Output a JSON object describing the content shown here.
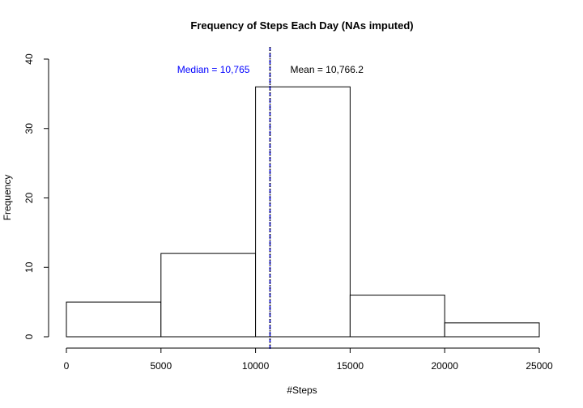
{
  "chart_data": {
    "type": "bar",
    "title": "Frequency of Steps Each Day (NAs imputed)",
    "xlabel": "#Steps",
    "ylabel": "Frequency",
    "bins": [
      {
        "start": 0,
        "end": 5000,
        "count": 5
      },
      {
        "start": 5000,
        "end": 10000,
        "count": 12
      },
      {
        "start": 10000,
        "end": 15000,
        "count": 36
      },
      {
        "start": 15000,
        "end": 20000,
        "count": 6
      },
      {
        "start": 20000,
        "end": 25000,
        "count": 2
      }
    ],
    "xlim": [
      0,
      25000
    ],
    "ylim": [
      0,
      40
    ],
    "x_ticks": [
      0,
      5000,
      10000,
      15000,
      20000,
      25000
    ],
    "y_ticks": [
      0,
      10,
      20,
      30,
      40
    ],
    "grid": false,
    "reference_lines": [
      {
        "name": "median",
        "value": 10765,
        "color": "#0000ff",
        "style": "dashed",
        "label": "Median = 10,765"
      },
      {
        "name": "mean",
        "value": 10766.2,
        "color": "#000000",
        "style": "dotted",
        "label": "Mean = 10,766.2"
      }
    ],
    "annotation_y": 38.5
  }
}
